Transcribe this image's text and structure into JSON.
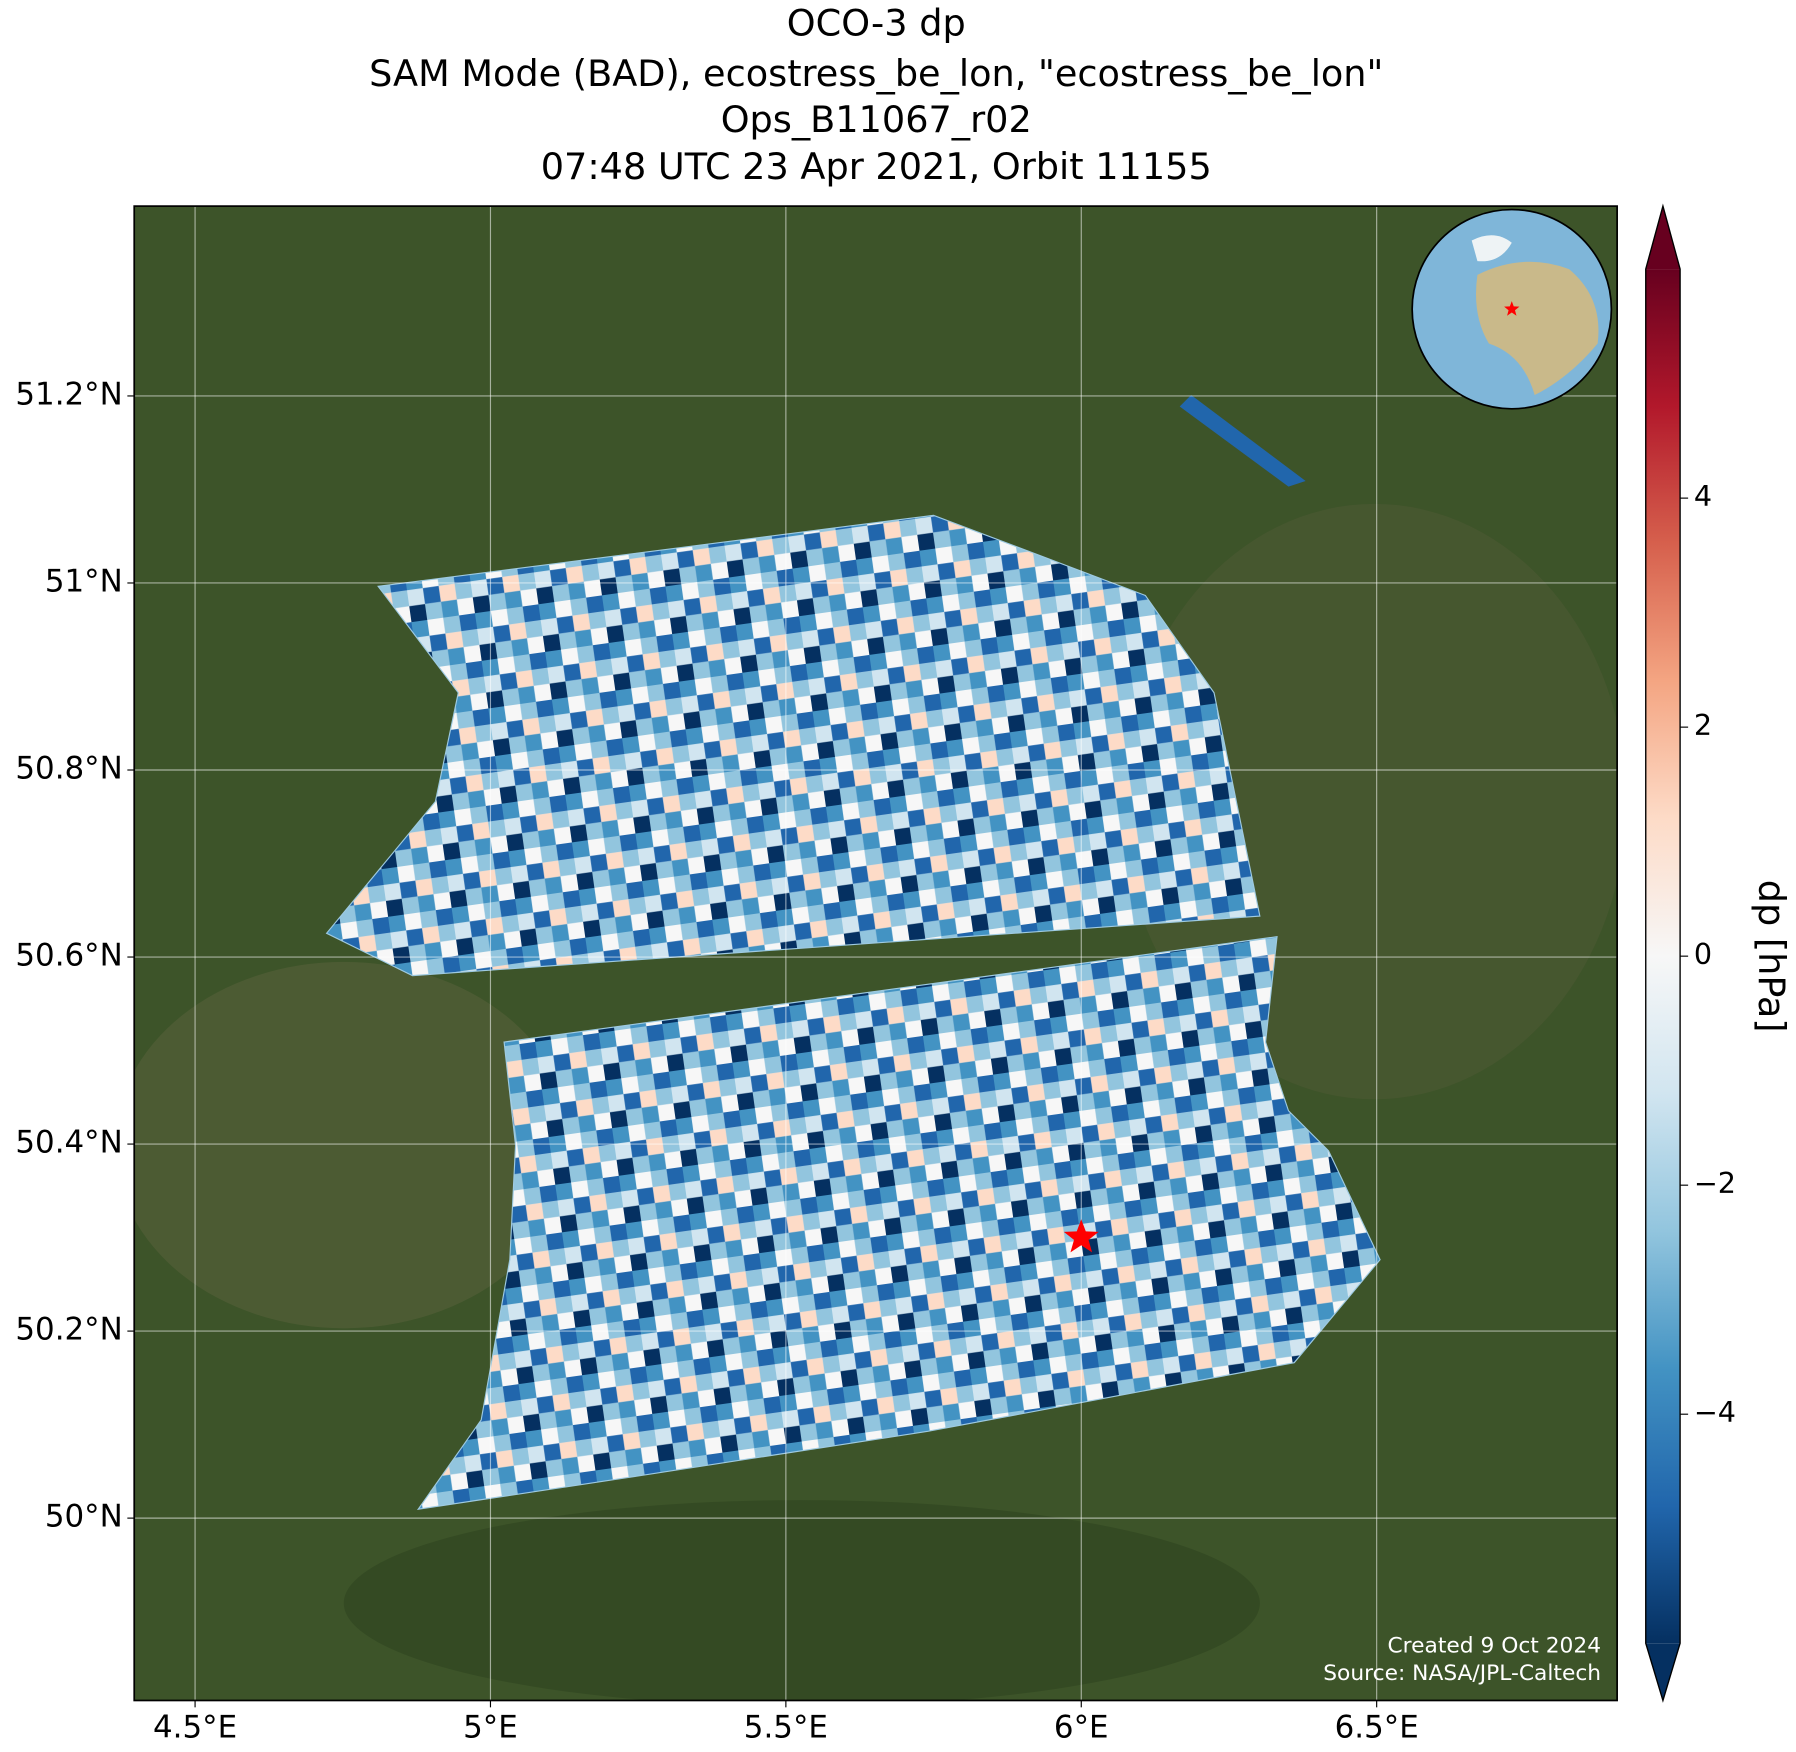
{
  "title": [
    "OCO-3 dp",
    "SAM Mode (BAD), ecostress_be_lon, \"ecostress_be_lon\"",
    "Ops_B11067_r02",
    "07:48 UTC 23 Apr 2021, Orbit 11155"
  ],
  "map": {
    "xlim": [
      4.397,
      6.907
    ],
    "ylim": [
      49.805,
      51.403
    ],
    "xticks": [
      {
        "value": 4.5,
        "label": "4.5°E"
      },
      {
        "value": 5,
        "label": "5°E"
      },
      {
        "value": 5.5,
        "label": "5.5°E"
      },
      {
        "value": 6,
        "label": "6°E"
      },
      {
        "value": 6.5,
        "label": "6.5°E"
      }
    ],
    "yticks": [
      {
        "value": 50,
        "label": "50°N"
      },
      {
        "value": 50.2,
        "label": "50.2°N"
      },
      {
        "value": 50.4,
        "label": "50.4°N"
      },
      {
        "value": 50.6,
        "label": "50.6°N"
      },
      {
        "value": 50.8,
        "label": "50.8°N"
      },
      {
        "value": 51,
        "label": "51°N"
      },
      {
        "value": 51.2,
        "label": "51.2°N"
      }
    ],
    "grid": true,
    "site": {
      "lon": 6.0,
      "lat": 50.3,
      "color": "#ff0000"
    }
  },
  "colorbar": {
    "label": "dp [hPa]",
    "lim": [
      -6,
      6
    ],
    "ticks": [
      {
        "value": -4,
        "label": "−4"
      },
      {
        "value": -2,
        "label": "−2"
      },
      0,
      2,
      4
    ],
    "colors": [
      "#053061",
      "#2166ac",
      "#4393c3",
      "#92c5de",
      "#d1e5f0",
      "#f7f7f7",
      "#fddbc7",
      "#f4a582",
      "#d6604d",
      "#b2182b",
      "#67001f"
    ]
  },
  "footer": [
    "Created 9 Oct 2024",
    "Source: NASA/JPL-Caltech"
  ]
}
